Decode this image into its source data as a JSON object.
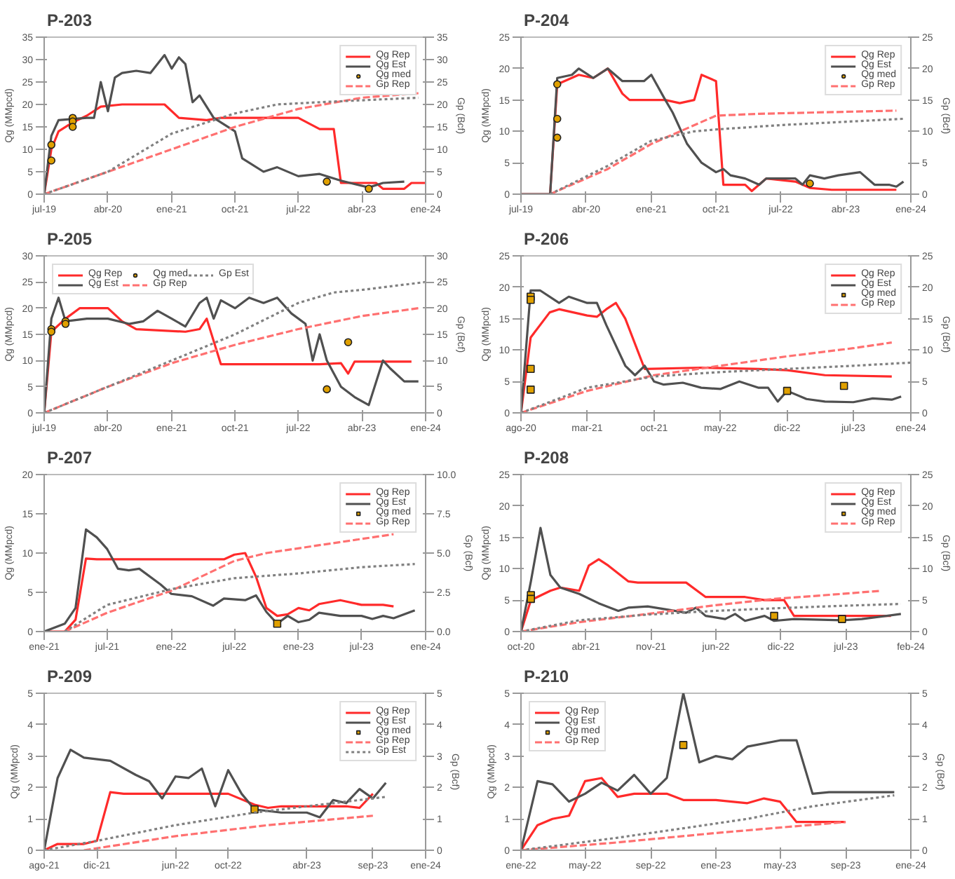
{
  "chart_data": [
    {
      "type": "line",
      "title": "P-203",
      "ylabel": "Qg (MMpcd)",
      "y2label": "Gp (Bcf)",
      "legend": "top right",
      "xlim": [
        "2019-07",
        "2024-01"
      ],
      "xticks": [
        {
          "value": "2019-07",
          "label": "jul-19"
        },
        {
          "value": "2020-04",
          "label": "abr-20"
        },
        {
          "value": "2021-01",
          "label": "ene-21"
        },
        {
          "value": "2021-10",
          "label": "oct-21"
        },
        {
          "value": "2022-07",
          "label": "jul-22"
        },
        {
          "value": "2023-04",
          "label": "abr-23"
        },
        {
          "value": "2024-01",
          "label": "ene-24"
        }
      ],
      "ylim": [
        0,
        35
      ],
      "yticks": [
        0,
        5,
        10,
        15,
        20,
        25,
        30,
        35
      ],
      "y2lim": [
        0,
        35
      ],
      "y2ticks": [
        0,
        5,
        10,
        15,
        20,
        25,
        30,
        35
      ],
      "series": [
        {
          "name": "Qg Rep",
          "type": "line",
          "line_style": "solid",
          "color": "#ff2a2a",
          "x": [
            "2019-07",
            "2019-08",
            "2019-09",
            "2019-11",
            "2020-01",
            "2020-03",
            "2020-06",
            "2020-12",
            "2021-02",
            "2021-06",
            "2021-08",
            "2022-07",
            "2022-10",
            "2022-12",
            "2023-01",
            "2023-06",
            "2023-07",
            "2023-10",
            "2023-11",
            "2024-01"
          ],
          "values": [
            0,
            10,
            14,
            16,
            17.5,
            19.5,
            20,
            20,
            17,
            16.5,
            17,
            17,
            14.5,
            14.5,
            2.5,
            2.5,
            1.2,
            1.2,
            2.5,
            2.5
          ]
        },
        {
          "name": "Qg Est",
          "type": "line",
          "line_style": "solid",
          "color": "#505050",
          "x": [
            "2019-07",
            "2019-08",
            "2019-09",
            "2020-01",
            "2020-02",
            "2020-03",
            "2020-04",
            "2020-05",
            "2020-06",
            "2020-08",
            "2020-10",
            "2020-12",
            "2021-01",
            "2021-02",
            "2021-03",
            "2021-04",
            "2021-05",
            "2021-07",
            "2021-10",
            "2021-11",
            "2022-02",
            "2022-04",
            "2022-07",
            "2022-10",
            "2023-01",
            "2023-05",
            "2023-07",
            "2023-10"
          ],
          "values": [
            0,
            13,
            16.5,
            17,
            17,
            25,
            18.5,
            26,
            27,
            27.5,
            27,
            31,
            28,
            30.5,
            29,
            20.5,
            22,
            17,
            14,
            8,
            5,
            6,
            4,
            4.5,
            3,
            1.5,
            2.5,
            2.8
          ]
        },
        {
          "name": "Qg med",
          "type": "scatter",
          "marker": "circle",
          "color": "#e0a000",
          "x": [
            "2019-08",
            "2019-08",
            "2019-11",
            "2019-11",
            "2019-11",
            "2022-11",
            "2023-05"
          ],
          "values": [
            11,
            7.5,
            17,
            16.2,
            15,
            2.8,
            1.2
          ]
        },
        {
          "name": "Gp Rep",
          "type": "line",
          "line_style": "dashed",
          "axis": "y2",
          "color": "#ff7070",
          "x": [
            "2019-07",
            "2020-04",
            "2021-01",
            "2021-10",
            "2022-07",
            "2023-04",
            "2023-12"
          ],
          "values": [
            0,
            5,
            10,
            15,
            19,
            21.5,
            22.5
          ]
        },
        {
          "type": "line",
          "line_style": "dotted",
          "axis": "y2",
          "color": "#808080",
          "x": [
            "2019-07",
            "2020-04",
            "2021-01",
            "2021-10",
            "2022-04",
            "2022-10",
            "2023-12"
          ],
          "values": [
            0,
            5,
            13.5,
            18,
            20,
            20.5,
            21.5
          ]
        }
      ]
    },
    {
      "type": "line",
      "title": "P-204",
      "ylabel": "Qg (MMpcd)",
      "y2label": "Gp (Bcf)",
      "legend": "top right",
      "xlim": [
        "2019-07",
        "2024-01"
      ],
      "xticks": [
        {
          "value": "2019-07",
          "label": "jul-19"
        },
        {
          "value": "2020-04",
          "label": "abr-20"
        },
        {
          "value": "2021-01",
          "label": "ene-21"
        },
        {
          "value": "2021-10",
          "label": "oct-21"
        },
        {
          "value": "2022-07",
          "label": "jul-22"
        },
        {
          "value": "2023-04",
          "label": "abr-23"
        },
        {
          "value": "2024-01",
          "label": "ene-24"
        }
      ],
      "ylim": [
        0,
        25
      ],
      "yticks": [
        0,
        5,
        10,
        15,
        20,
        25
      ],
      "y2lim": [
        0,
        25
      ],
      "y2ticks": [
        0,
        5,
        10,
        15,
        20,
        25
      ],
      "series": [
        {
          "name": "Qg Rep",
          "type": "line",
          "line_style": "solid",
          "color": "#ff2a2a",
          "x": [
            "2019-07",
            "2019-11",
            "2019-12",
            "2020-03",
            "2020-05",
            "2020-07",
            "2020-09",
            "2020-10",
            "2021-03",
            "2021-05",
            "2021-07",
            "2021-08",
            "2021-10",
            "2021-11",
            "2022-02",
            "2022-03",
            "2022-05",
            "2022-09",
            "2022-11",
            "2023-02",
            "2023-11"
          ],
          "values": [
            0,
            0,
            17.5,
            19,
            18.5,
            20,
            16,
            15,
            15,
            14.5,
            15,
            19,
            18,
            1.5,
            1.5,
            0.5,
            2.5,
            2,
            1,
            0.7,
            0.7
          ]
        },
        {
          "name": "Qg Est",
          "type": "line",
          "line_style": "solid",
          "color": "#505050",
          "x": [
            "2019-07",
            "2019-11",
            "2019-12",
            "2020-02",
            "2020-03",
            "2020-05",
            "2020-07",
            "2020-09",
            "2020-12",
            "2021-01",
            "2021-03",
            "2021-04",
            "2021-06",
            "2021-08",
            "2021-10",
            "2021-11",
            "2021-12",
            "2022-02",
            "2022-04",
            "2022-05",
            "2022-09",
            "2022-10",
            "2022-11",
            "2023-01",
            "2023-03",
            "2023-06",
            "2023-08",
            "2023-10",
            "2023-11",
            "2023-12"
          ],
          "values": [
            0,
            0,
            18.5,
            19,
            20,
            18.5,
            20,
            18,
            18,
            19,
            15,
            13,
            8,
            5,
            3.5,
            4,
            3,
            2.5,
            1.5,
            2.5,
            2.5,
            1.5,
            3,
            2.5,
            3,
            3.5,
            1.5,
            1.5,
            1.2,
            2
          ]
        },
        {
          "name": "Qg med",
          "type": "scatter",
          "marker": "circle",
          "color": "#e0a000",
          "x": [
            "2019-12",
            "2019-12",
            "2019-12",
            "2022-11"
          ],
          "values": [
            17.5,
            12,
            9,
            1.7
          ]
        },
        {
          "name": "Gp Rep",
          "type": "line",
          "line_style": "dashed",
          "axis": "y2",
          "color": "#ff7070",
          "x": [
            "2019-11",
            "2020-07",
            "2021-01",
            "2021-10",
            "2022-04",
            "2023-11"
          ],
          "values": [
            0,
            4,
            8,
            12.5,
            12.8,
            13.3
          ]
        },
        {
          "type": "line",
          "line_style": "dotted",
          "axis": "y2",
          "color": "#808080",
          "x": [
            "2019-11",
            "2020-07",
            "2021-01",
            "2021-07",
            "2021-10",
            "2022-07",
            "2023-12"
          ],
          "values": [
            0,
            4.5,
            8.5,
            10,
            10.3,
            11,
            12
          ]
        }
      ]
    },
    {
      "type": "line",
      "title": "P-205",
      "ylabel": "Qg (MMpcd)",
      "y2label": "Gp (Bcf)",
      "legend": "top left",
      "xlim": [
        "2019-07",
        "2024-01"
      ],
      "xticks": [
        {
          "value": "2019-07",
          "label": "jul-19"
        },
        {
          "value": "2020-04",
          "label": "abr-20"
        },
        {
          "value": "2021-01",
          "label": "ene-21"
        },
        {
          "value": "2021-10",
          "label": "oct-21"
        },
        {
          "value": "2022-07",
          "label": "jul-22"
        },
        {
          "value": "2023-04",
          "label": "abr-23"
        },
        {
          "value": "2024-01",
          "label": "ene-24"
        }
      ],
      "ylim": [
        0,
        30
      ],
      "yticks": [
        0,
        5,
        10,
        15,
        20,
        25,
        30
      ],
      "y2lim": [
        0,
        30
      ],
      "y2ticks": [
        0,
        5,
        10,
        15,
        20,
        25,
        30
      ],
      "series": [
        {
          "name": "Qg Rep",
          "type": "line",
          "line_style": "solid",
          "color": "#ff2a2a",
          "x": [
            "2019-07",
            "2019-08",
            "2019-10",
            "2019-12",
            "2020-04",
            "2020-06",
            "2020-08",
            "2021-03",
            "2021-05",
            "2021-06",
            "2021-08",
            "2022-10",
            "2023-01",
            "2023-02",
            "2023-03",
            "2023-11"
          ],
          "values": [
            0,
            15.5,
            18,
            20,
            20,
            17.5,
            16,
            15.5,
            16,
            18,
            9.3,
            9.3,
            9.5,
            7.5,
            9.8,
            9.8
          ]
        },
        {
          "name": "Qg Est",
          "type": "line",
          "line_style": "solid",
          "color": "#505050",
          "x": [
            "2019-07",
            "2019-08",
            "2019-09",
            "2019-10",
            "2020-01",
            "2020-04",
            "2020-07",
            "2020-09",
            "2020-11",
            "2021-01",
            "2021-03",
            "2021-05",
            "2021-06",
            "2021-07",
            "2021-08",
            "2021-10",
            "2021-12",
            "2022-02",
            "2022-04",
            "2022-06",
            "2022-08",
            "2022-09",
            "2022-10",
            "2022-11",
            "2023-01",
            "2023-03",
            "2023-05",
            "2023-07",
            "2023-08",
            "2023-10",
            "2023-12"
          ],
          "values": [
            0,
            18,
            22,
            17.5,
            18,
            18,
            17,
            17.5,
            19.5,
            18,
            16.5,
            21,
            22,
            18,
            21.5,
            20,
            22,
            21,
            22,
            19,
            17,
            10,
            15,
            10,
            5,
            3,
            1.5,
            10,
            8.5,
            6,
            6
          ]
        },
        {
          "name": "Qg med",
          "type": "scatter",
          "marker": "circle",
          "color": "#e0a000",
          "x": [
            "2019-08",
            "2019-08",
            "2019-10",
            "2019-10",
            "2022-11",
            "2023-02"
          ],
          "values": [
            16,
            15.5,
            17.5,
            17,
            4.5,
            13.5
          ]
        },
        {
          "name": "Gp Rep",
          "type": "line",
          "line_style": "dashed",
          "axis": "y2",
          "color": "#ff7070",
          "x": [
            "2019-07",
            "2020-04",
            "2021-01",
            "2021-10",
            "2022-07",
            "2023-04",
            "2023-12"
          ],
          "values": [
            0,
            5,
            9.5,
            13,
            16,
            18.5,
            20
          ]
        },
        {
          "name": "Gp Est",
          "type": "line",
          "line_style": "dotted",
          "axis": "y2",
          "color": "#808080",
          "x": [
            "2019-07",
            "2020-04",
            "2021-01",
            "2021-10",
            "2022-07",
            "2022-12",
            "2023-04",
            "2024-01"
          ],
          "values": [
            0,
            5,
            10,
            15,
            21,
            23,
            23.5,
            25
          ]
        }
      ]
    },
    {
      "type": "line",
      "title": "P-206",
      "ylabel": "Qg (MMpcd)",
      "y2label": "Gp (Bcf)",
      "legend": "top right",
      "xlim": [
        "2020-08",
        "2024-01"
      ],
      "xticks": [
        {
          "value": "2020-08",
          "label": "ago-20"
        },
        {
          "value": "2021-03",
          "label": "mar-21"
        },
        {
          "value": "2021-10",
          "label": "oct-21"
        },
        {
          "value": "2022-05",
          "label": "may-22"
        },
        {
          "value": "2022-12",
          "label": "dic-22"
        },
        {
          "value": "2023-07",
          "label": "jul-23"
        },
        {
          "value": "2024-01",
          "label": "ene-24"
        }
      ],
      "ylim": [
        0,
        25
      ],
      "yticks": [
        0,
        5,
        10,
        15,
        20,
        25
      ],
      "y2lim": [
        0,
        25
      ],
      "y2ticks": [
        0,
        5,
        10,
        15,
        20,
        25
      ],
      "series": [
        {
          "name": "Qg Rep",
          "type": "line",
          "line_style": "solid",
          "color": "#ff2a2a",
          "x": [
            "2020-08",
            "2020-09",
            "2020-11",
            "2020-12",
            "2021-03",
            "2021-04",
            "2021-05",
            "2021-06",
            "2021-07",
            "2021-09",
            "2022-03",
            "2022-09",
            "2022-12",
            "2023-04",
            "2023-11"
          ],
          "values": [
            0,
            12,
            16,
            16.5,
            15.5,
            15.3,
            16.5,
            17.5,
            15,
            7,
            7.2,
            7,
            6.8,
            6,
            5.8
          ]
        },
        {
          "name": "Qg Est",
          "type": "line",
          "line_style": "solid",
          "color": "#505050",
          "x": [
            "2020-08",
            "2020-09",
            "2020-10",
            "2020-12",
            "2021-01",
            "2021-03",
            "2021-04",
            "2021-05",
            "2021-07",
            "2021-08",
            "2021-09",
            "2021-10",
            "2021-11",
            "2022-01",
            "2022-03",
            "2022-05",
            "2022-07",
            "2022-09",
            "2022-10",
            "2022-11",
            "2022-12",
            "2023-02",
            "2023-04",
            "2023-07",
            "2023-09",
            "2023-11",
            "2023-12"
          ],
          "values": [
            0,
            19.5,
            19.5,
            17.5,
            18.5,
            17.5,
            17.5,
            14,
            7.5,
            6,
            7.5,
            5,
            4.5,
            4.8,
            4,
            3.8,
            5,
            4,
            4,
            1.8,
            3.5,
            2.2,
            1.8,
            1.7,
            2.3,
            2.1,
            2.6
          ]
        },
        {
          "name": "Qg med",
          "type": "scatter",
          "marker": "square",
          "color": "#e0a000",
          "x": [
            "2020-09",
            "2020-09",
            "2020-09",
            "2020-09",
            "2022-12",
            "2023-06"
          ],
          "values": [
            18.5,
            18,
            7,
            3.7,
            3.5,
            4.3
          ]
        },
        {
          "name": "Gp Rep",
          "type": "line",
          "line_style": "dashed",
          "axis": "y2",
          "color": "#ff7070",
          "x": [
            "2020-08",
            "2021-03",
            "2021-10",
            "2022-05",
            "2022-12",
            "2023-07",
            "2023-11"
          ],
          "values": [
            0,
            3.5,
            6,
            7.5,
            9,
            10.3,
            11.2
          ]
        },
        {
          "type": "line",
          "line_style": "dotted",
          "axis": "y2",
          "color": "#808080",
          "x": [
            "2020-08",
            "2021-03",
            "2021-10",
            "2022-05",
            "2022-12",
            "2023-07",
            "2024-01"
          ],
          "values": [
            0,
            4,
            5.8,
            6.5,
            7,
            7.5,
            8
          ]
        }
      ]
    },
    {
      "type": "line",
      "title": "P-207",
      "ylabel": "Qg (MMpcd)",
      "y2label": "Gp (Bcf)",
      "legend": "top right",
      "xlim": [
        "2021-01",
        "2024-01"
      ],
      "xticks": [
        {
          "value": "2021-01",
          "label": "ene-21"
        },
        {
          "value": "2021-07",
          "label": "jul-21"
        },
        {
          "value": "2022-01",
          "label": "ene-22"
        },
        {
          "value": "2022-07",
          "label": "jul-22"
        },
        {
          "value": "2023-01",
          "label": "ene-23"
        },
        {
          "value": "2023-07",
          "label": "jul-23"
        },
        {
          "value": "2024-01",
          "label": "ene-24"
        }
      ],
      "ylim": [
        0,
        20
      ],
      "yticks": [
        0,
        5,
        10,
        15,
        20
      ],
      "y2lim": [
        0,
        10
      ],
      "y2ticks": [
        {
          "value": 0,
          "label": "0.0"
        },
        {
          "value": 2.5,
          "label": "2.5"
        },
        {
          "value": 5,
          "label": "5.0"
        },
        {
          "value": 7.5,
          "label": "7.5"
        },
        {
          "value": 10,
          "label": "10.0"
        }
      ],
      "series": [
        {
          "name": "Qg Rep",
          "type": "line",
          "line_style": "solid",
          "color": "#ff2a2a",
          "x": [
            "2021-01",
            "2021-03",
            "2021-04",
            "2021-05",
            "2021-06",
            "2022-06",
            "2022-07",
            "2022-08",
            "2022-09",
            "2022-10",
            "2022-11",
            "2022-12",
            "2023-01",
            "2023-02",
            "2023-03",
            "2023-05",
            "2023-07",
            "2023-09",
            "2023-10"
          ],
          "values": [
            0,
            0,
            1.5,
            9.3,
            9.2,
            9.2,
            9.8,
            10,
            7,
            3,
            2,
            2.2,
            3,
            2.7,
            3.5,
            4,
            3.4,
            3.4,
            3.2
          ]
        },
        {
          "name": "Qg Est",
          "type": "line",
          "line_style": "solid",
          "color": "#505050",
          "x": [
            "2021-01",
            "2021-03",
            "2021-04",
            "2021-05",
            "2021-06",
            "2021-07",
            "2021-08",
            "2021-09",
            "2021-10",
            "2021-12",
            "2022-01",
            "2022-03",
            "2022-05",
            "2022-06",
            "2022-08",
            "2022-09",
            "2022-10",
            "2022-11",
            "2022-12",
            "2023-01",
            "2023-02",
            "2023-03",
            "2023-05",
            "2023-07",
            "2023-08",
            "2023-09",
            "2023-10",
            "2023-12"
          ],
          "values": [
            0,
            1,
            3,
            13,
            12,
            10.5,
            8,
            7.8,
            8,
            6,
            4.8,
            4.5,
            3.3,
            4.2,
            4,
            4.6,
            2.5,
            1,
            2,
            1.2,
            1.5,
            2.4,
            2,
            2,
            1.6,
            2,
            1.7,
            2.7
          ]
        },
        {
          "name": "Qg med",
          "type": "scatter",
          "marker": "square",
          "color": "#e0a000",
          "x": [
            "2022-11"
          ],
          "values": [
            1
          ]
        },
        {
          "name": "Gp Rep",
          "type": "line",
          "line_style": "dashed",
          "axis": "y2",
          "color": "#ff7070",
          "x": [
            "2021-03",
            "2021-07",
            "2022-01",
            "2022-07",
            "2022-10",
            "2023-04",
            "2023-10"
          ],
          "values": [
            0,
            1.2,
            2.6,
            4.5,
            5,
            5.6,
            6.2
          ]
        },
        {
          "type": "line",
          "line_style": "dotted",
          "axis": "y2",
          "color": "#808080",
          "x": [
            "2021-03",
            "2021-07",
            "2022-01",
            "2022-07",
            "2023-01",
            "2023-07",
            "2023-12"
          ],
          "values": [
            0,
            1.7,
            2.7,
            3.4,
            3.7,
            4.1,
            4.3
          ]
        }
      ]
    },
    {
      "type": "line",
      "title": "P-208",
      "ylabel": "Qg (MMpcd)",
      "y2label": "Gp (Bcf)",
      "legend": "top right",
      "xlim": [
        "2020-10-01",
        "2024-02-01"
      ],
      "xticks": [
        {
          "value": "2020-10-01",
          "label": "oct-20"
        },
        {
          "value": "2021-04-22",
          "label": "abr-21"
        },
        {
          "value": "2021-11-11",
          "label": "nov-21"
        },
        {
          "value": "2022-06-02",
          "label": "jun-22"
        },
        {
          "value": "2022-12-22",
          "label": "dic-22"
        },
        {
          "value": "2023-07-13",
          "label": "jul-23"
        },
        {
          "value": "2024-02-01",
          "label": "feb-24"
        }
      ],
      "ylim": [
        0,
        25
      ],
      "yticks": [
        0,
        5,
        10,
        15,
        20,
        25
      ],
      "y2lim": [
        0,
        25
      ],
      "y2ticks": [
        0,
        5,
        10,
        15,
        20,
        25
      ],
      "series": [
        {
          "name": "Qg Rep",
          "type": "line",
          "line_style": "solid",
          "color": "#ff2a2a",
          "x": [
            "2020-10",
            "2020-11",
            "2021-01",
            "2021-02",
            "2021-04",
            "2021-05",
            "2021-06",
            "2021-07",
            "2021-09",
            "2021-10",
            "2022-03",
            "2022-05",
            "2022-09",
            "2022-11",
            "2023-01",
            "2023-02",
            "2023-12"
          ],
          "values": [
            0,
            5,
            6.5,
            7,
            6.5,
            10.5,
            11.5,
            10.5,
            8,
            7.8,
            7.8,
            5.5,
            5.5,
            5,
            5,
            2.5,
            2.5
          ]
        },
        {
          "name": "Qg Est",
          "type": "line",
          "line_style": "solid",
          "color": "#505050",
          "x": [
            "2020-10",
            "2020-11",
            "2020-12",
            "2021-01",
            "2021-02",
            "2021-04",
            "2021-06",
            "2021-08",
            "2021-09",
            "2021-11",
            "2022-01",
            "2022-03",
            "2022-04",
            "2022-05",
            "2022-07",
            "2022-08",
            "2022-09",
            "2022-11",
            "2022-12",
            "2023-02",
            "2023-07",
            "2023-09",
            "2024-01"
          ],
          "values": [
            0,
            8,
            16.5,
            9,
            7,
            6,
            4.5,
            3.3,
            3.8,
            4,
            3.5,
            3,
            3.8,
            2.5,
            2,
            2.8,
            1.7,
            2.5,
            1.7,
            2,
            1.8,
            2,
            2.8
          ]
        },
        {
          "name": "Qg med",
          "type": "scatter",
          "marker": "square",
          "color": "#e0a000",
          "x": [
            "2020-11",
            "2020-11",
            "2022-12",
            "2023-07"
          ],
          "values": [
            5.8,
            5.2,
            2.5,
            2
          ]
        },
        {
          "name": "Gp Rep",
          "type": "line",
          "line_style": "dashed",
          "axis": "y2",
          "color": "#ff7070",
          "x": [
            "2020-10",
            "2021-04",
            "2021-11",
            "2022-06",
            "2022-12",
            "2023-07",
            "2023-11"
          ],
          "values": [
            0,
            1.5,
            2.8,
            4.2,
            5.2,
            6,
            6.5
          ]
        },
        {
          "type": "line",
          "line_style": "dotted",
          "axis": "y2",
          "color": "#808080",
          "x": [
            "2020-10",
            "2021-04",
            "2021-11",
            "2022-06",
            "2022-12",
            "2023-07",
            "2024-01"
          ],
          "values": [
            0,
            1.8,
            2.7,
            3.3,
            3.7,
            4.1,
            4.4
          ]
        }
      ]
    },
    {
      "type": "line",
      "title": "P-209",
      "ylabel": "Qg (MMpcd)",
      "y2label": "Gp (Bcf)",
      "legend": "top right",
      "xlim": [
        "2021-08",
        "2024-01"
      ],
      "xticks": [
        {
          "value": "2021-08",
          "label": "ago-21"
        },
        {
          "value": "2021-12",
          "label": "dic-21"
        },
        {
          "value": "2022-06",
          "label": "jun-22"
        },
        {
          "value": "2022-10",
          "label": "oct-22"
        },
        {
          "value": "2023-04",
          "label": "abr-23"
        },
        {
          "value": "2023-09",
          "label": "sep-23"
        },
        {
          "value": "2024-01",
          "label": "ene-24"
        }
      ],
      "ylim": [
        0,
        5
      ],
      "yticks": [
        0,
        1,
        2,
        3,
        4,
        5
      ],
      "y2lim": [
        0,
        5
      ],
      "y2ticks": [
        0,
        1,
        2,
        3,
        4,
        5
      ],
      "series": [
        {
          "name": "Qg Rep",
          "type": "line",
          "line_style": "solid",
          "color": "#ff2a2a",
          "x": [
            "2021-08",
            "2021-09",
            "2021-11",
            "2021-12",
            "2022-01",
            "2022-02",
            "2022-10",
            "2022-12",
            "2023-01",
            "2023-02",
            "2023-07",
            "2023-08",
            "2023-09"
          ],
          "values": [
            0,
            0.2,
            0.2,
            0.3,
            1.85,
            1.8,
            1.8,
            1.45,
            1.35,
            1.4,
            1.4,
            1.35,
            1.8
          ]
        },
        {
          "name": "Qg Est",
          "type": "line",
          "line_style": "solid",
          "color": "#505050",
          "x": [
            "2021-08",
            "2021-09",
            "2021-10",
            "2021-11",
            "2022-01",
            "2022-03",
            "2022-04",
            "2022-05",
            "2022-06",
            "2022-07",
            "2022-08",
            "2022-09",
            "2022-10",
            "2022-11",
            "2022-12",
            "2023-02",
            "2023-04",
            "2023-05",
            "2023-06",
            "2023-07",
            "2023-08",
            "2023-09",
            "2023-10"
          ],
          "values": [
            0,
            2.3,
            3.2,
            2.95,
            2.85,
            2.4,
            2.2,
            1.65,
            2.35,
            2.3,
            2.6,
            1.4,
            2.55,
            1.8,
            1.3,
            1.2,
            1.2,
            1.05,
            1.6,
            1.5,
            1.95,
            1.65,
            2.15
          ]
        },
        {
          "name": "Qg med",
          "type": "scatter",
          "marker": "square",
          "color": "#e0a000",
          "x": [
            "2022-12"
          ],
          "values": [
            1.3
          ]
        },
        {
          "name": "Gp Rep",
          "type": "line",
          "line_style": "dashed",
          "axis": "y2",
          "color": "#ff7070",
          "x": [
            "2021-11",
            "2022-06",
            "2023-01",
            "2023-09"
          ],
          "values": [
            0,
            0.45,
            0.8,
            1.1
          ]
        },
        {
          "name": "Gp Est",
          "type": "line",
          "line_style": "dotted",
          "axis": "y2",
          "color": "#808080",
          "x": [
            "2021-08",
            "2021-12",
            "2022-06",
            "2022-12",
            "2023-06",
            "2023-10"
          ],
          "values": [
            0,
            0.3,
            0.8,
            1.2,
            1.5,
            1.7
          ]
        }
      ]
    },
    {
      "type": "line",
      "title": "P-210",
      "ylabel": "Qg (MMpcd)",
      "y2label": "Gp (Bcf)",
      "legend": "top left",
      "xlim": [
        "2022-01",
        "2024-01"
      ],
      "xticks": [
        {
          "value": "2022-01",
          "label": "ene-22"
        },
        {
          "value": "2022-05",
          "label": "may-22"
        },
        {
          "value": "2022-09",
          "label": "sep-22"
        },
        {
          "value": "2023-01",
          "label": "ene-23"
        },
        {
          "value": "2023-05",
          "label": "may-23"
        },
        {
          "value": "2023-09",
          "label": "sep-23"
        },
        {
          "value": "2024-01",
          "label": "ene-24"
        }
      ],
      "ylim": [
        0,
        5
      ],
      "yticks": [
        0,
        1,
        2,
        3,
        4,
        5
      ],
      "y2lim": [
        0,
        5
      ],
      "y2ticks": [
        0,
        1,
        2,
        3,
        4,
        5
      ],
      "series": [
        {
          "name": "Qg Rep",
          "type": "line",
          "line_style": "solid",
          "color": "#ff2a2a",
          "x": [
            "2022-01",
            "2022-02",
            "2022-03",
            "2022-04",
            "2022-05",
            "2022-06",
            "2022-07",
            "2022-08",
            "2022-10",
            "2022-11",
            "2023-01",
            "2023-03",
            "2023-04",
            "2023-05",
            "2023-06",
            "2023-09"
          ],
          "values": [
            0,
            0.8,
            1,
            1.1,
            2.2,
            2.3,
            1.7,
            1.8,
            1.8,
            1.6,
            1.6,
            1.5,
            1.65,
            1.55,
            0.9,
            0.9
          ]
        },
        {
          "name": "Qg Est",
          "type": "line",
          "line_style": "solid",
          "color": "#505050",
          "x": [
            "2022-01",
            "2022-02",
            "2022-03",
            "2022-04",
            "2022-05",
            "2022-06",
            "2022-07",
            "2022-08",
            "2022-09",
            "2022-10",
            "2022-11",
            "2022-12",
            "2023-01",
            "2023-02",
            "2023-03",
            "2023-05",
            "2023-06",
            "2023-07",
            "2023-08",
            "2023-12"
          ],
          "values": [
            0,
            2.2,
            2.1,
            1.55,
            1.8,
            2.15,
            1.9,
            2.4,
            1.8,
            2.3,
            5,
            2.8,
            3,
            2.9,
            3.3,
            3.5,
            3.5,
            1.8,
            1.85,
            1.85
          ]
        },
        {
          "name": "Qg med",
          "type": "scatter",
          "marker": "square",
          "color": "#e0a000",
          "x": [
            "2022-11"
          ],
          "values": [
            3.35
          ]
        },
        {
          "name": "Gp Rep",
          "type": "line",
          "line_style": "dashed",
          "axis": "y2",
          "color": "#ff7070",
          "x": [
            "2022-01",
            "2022-07",
            "2023-01",
            "2023-09"
          ],
          "values": [
            0,
            0.25,
            0.55,
            0.9
          ]
        },
        {
          "type": "line",
          "line_style": "dotted",
          "axis": "y2",
          "color": "#808080",
          "x": [
            "2022-01",
            "2022-07",
            "2022-11",
            "2023-03",
            "2023-07",
            "2023-12"
          ],
          "values": [
            0,
            0.4,
            0.7,
            1.0,
            1.4,
            1.75
          ]
        }
      ]
    }
  ]
}
